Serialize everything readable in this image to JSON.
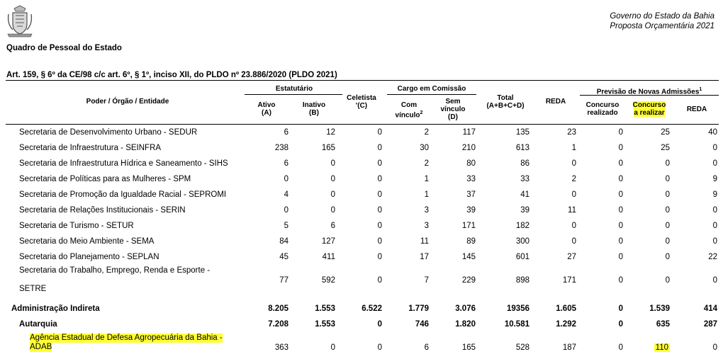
{
  "header": {
    "gov_line": "Governo do Estado da Bahia",
    "budget_line": "Proposta Orçamentária 2021",
    "title": "Quadro de Pessoal do Estado",
    "article": "Art. 159, § 6º da CE/98 c/c art. 6º, § 1º, inciso XII, do PLDO nº 23.886/2020 (PLDO 2021)"
  },
  "columns": {
    "entity": "Poder / Órgão / Entidade",
    "estatutario": "Estatutário",
    "ativo_1": "Ativo",
    "ativo_2": "(A)",
    "inativo_1": "Inativo",
    "inativo_2": "(B)",
    "celetista_1": "Celetista",
    "celetista_2": "'(C)",
    "cargo": "Cargo em Comissão",
    "com_1": "Com",
    "com_2": "vínculo",
    "com_sup": "2",
    "sem_1": "Sem",
    "sem_2": "vínculo",
    "sem_3": "(D)",
    "total_1": "Total",
    "total_2": "(A+B+C+D)",
    "reda": "REDA",
    "previsao": "Previsão de Novas Admissões",
    "previsao_sup": "1",
    "realizado_1": "Concurso",
    "realizado_2": "realizado",
    "arealizar_1": "Concurso",
    "arealizar_2": "a realizar",
    "reda2": "REDA"
  },
  "rows": [
    {
      "label": "Secretaria de Desenvolvimento Urbano - SEDUR",
      "v": [
        "6",
        "12",
        "0",
        "2",
        "117",
        "135",
        "23",
        "0",
        "25",
        "40"
      ]
    },
    {
      "label": "Secretaria de Infraestrutura - SEINFRA",
      "v": [
        "238",
        "165",
        "0",
        "30",
        "210",
        "613",
        "1",
        "0",
        "25",
        "0"
      ]
    },
    {
      "label": "Secretaria de Infraestrutura Hídrica e Saneamento - SIHS",
      "v": [
        "6",
        "0",
        "0",
        "2",
        "80",
        "86",
        "0",
        "0",
        "0",
        "0"
      ]
    },
    {
      "label": "Secretaria de Políticas para as Mulheres - SPM",
      "v": [
        "0",
        "0",
        "0",
        "1",
        "33",
        "33",
        "2",
        "0",
        "0",
        "9"
      ]
    },
    {
      "label": "Secretaria de Promoção da Igualdade Racial - SEPROMI",
      "v": [
        "4",
        "0",
        "0",
        "1",
        "37",
        "41",
        "0",
        "0",
        "0",
        "9"
      ]
    },
    {
      "label": "Secretaria de Relações Institucionais - SERIN",
      "v": [
        "0",
        "0",
        "0",
        "3",
        "39",
        "39",
        "11",
        "0",
        "0",
        "0"
      ]
    },
    {
      "label": "Secretaria de Turismo - SETUR",
      "v": [
        "5",
        "6",
        "0",
        "3",
        "171",
        "182",
        "0",
        "0",
        "0",
        "0"
      ]
    },
    {
      "label": "Secretaria do Meio Ambiente - SEMA",
      "v": [
        "84",
        "127",
        "0",
        "11",
        "89",
        "300",
        "0",
        "0",
        "0",
        "0"
      ]
    },
    {
      "label": "Secretaria do Planejamento - SEPLAN",
      "v": [
        "45",
        "411",
        "0",
        "17",
        "145",
        "601",
        "27",
        "0",
        "0",
        "22"
      ]
    },
    {
      "label_1": "Secretaria do Trabalho, Emprego, Renda e Esporte -",
      "label_2": "SETRE",
      "v": [
        "77",
        "592",
        "0",
        "7",
        "229",
        "898",
        "171",
        "0",
        "0",
        "0"
      ]
    },
    {
      "label": "Administração Indireta",
      "v": [
        "8.205",
        "1.553",
        "6.522",
        "1.779",
        "3.076",
        "19356",
        "1.605",
        "0",
        "1.539",
        "414"
      ]
    },
    {
      "label": "Autarquia",
      "v": [
        "7.208",
        "1.553",
        "0",
        "746",
        "1.820",
        "10.581",
        "1.292",
        "0",
        "635",
        "287"
      ]
    },
    {
      "label_1": "Agência Estadual de Defesa Agropecuária da Bahia -",
      "label_2": "ADAB",
      "v": [
        "363",
        "0",
        "0",
        "6",
        "165",
        "528",
        "187",
        "0",
        "110",
        "0"
      ]
    }
  ],
  "colors": {
    "highlight": "#ffff33"
  }
}
